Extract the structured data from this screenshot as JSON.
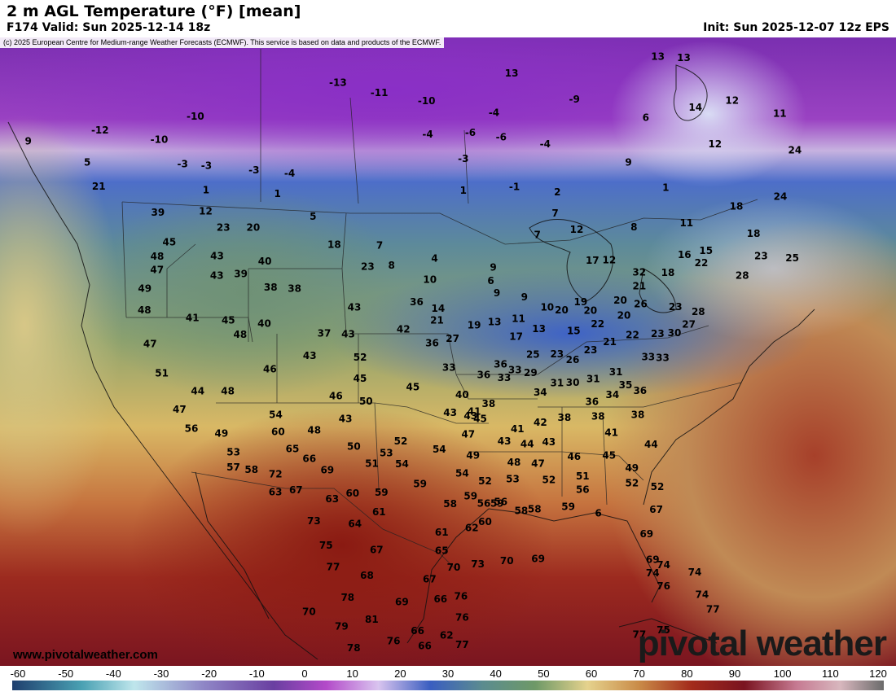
{
  "header": {
    "title": "2 m AGL Temperature (°F) [mean]",
    "valid": "F174 Valid: Sun 2025-12-14 18z",
    "init": "Init: Sun 2025-12-07 12z EPS"
  },
  "copyright": "(c) 2025 European Centre for Medium-range Weather Forecasts (ECMWF). This service is based on data and products of the ECMWF.",
  "site_url": "www.pivotalweather.com",
  "logo_text": "pivotal weather",
  "colorbar": {
    "ticks": [
      "-60",
      "-50",
      "-40",
      "-30",
      "-20",
      "-10",
      "0",
      "10",
      "20",
      "30",
      "40",
      "50",
      "60",
      "70",
      "80",
      "90",
      "100",
      "110",
      "120"
    ]
  },
  "temperature_labels": [
    {
      "t": "-12",
      "lon": -128,
      "lat": 54.2
    },
    {
      "t": "9",
      "lon": -134,
      "lat": 53
    },
    {
      "t": "5",
      "lon": -129,
      "lat": 52
    },
    {
      "t": "21",
      "lon": -128,
      "lat": 50.5
    },
    {
      "t": "-10",
      "lon": -120,
      "lat": 55.6
    },
    {
      "t": "-10",
      "lon": -123,
      "lat": 53.9
    },
    {
      "t": "-3",
      "lon": -121,
      "lat": 52.4
    },
    {
      "t": "-3",
      "lon": -119,
      "lat": 52.4
    },
    {
      "t": "-3",
      "lon": -115,
      "lat": 52.3
    },
    {
      "t": "-4",
      "lon": -112,
      "lat": 52.2
    },
    {
      "t": "1",
      "lon": -119,
      "lat": 50.8
    },
    {
      "t": "1",
      "lon": -113,
      "lat": 50.8
    },
    {
      "t": "12",
      "lon": -119,
      "lat": 49.4
    },
    {
      "t": "23",
      "lon": -117.5,
      "lat": 48.4
    },
    {
      "t": "20",
      "lon": -115,
      "lat": 48.5
    },
    {
      "t": "5",
      "lon": -110,
      "lat": 49.4
    },
    {
      "t": "39",
      "lon": -123,
      "lat": 49.1
    },
    {
      "t": "45",
      "lon": -122,
      "lat": 47.2
    },
    {
      "t": "48",
      "lon": -123,
      "lat": 46.2
    },
    {
      "t": "47",
      "lon": -123,
      "lat": 45.3
    },
    {
      "t": "43",
      "lon": -118,
      "lat": 46.5
    },
    {
      "t": "43",
      "lon": -118,
      "lat": 45.2
    },
    {
      "t": "39",
      "lon": -116,
      "lat": 45.4
    },
    {
      "t": "40",
      "lon": -114,
      "lat": 46.3
    },
    {
      "t": "38",
      "lon": -113.5,
      "lat": 44.6
    },
    {
      "t": "38",
      "lon": -111.5,
      "lat": 44.6
    },
    {
      "t": "49",
      "lon": -124,
      "lat": 44
    },
    {
      "t": "48",
      "lon": -124,
      "lat": 42.6
    },
    {
      "t": "41",
      "lon": -120,
      "lat": 42.3
    },
    {
      "t": "45",
      "lon": -117,
      "lat": 42.3
    },
    {
      "t": "40",
      "lon": -114,
      "lat": 42.2
    },
    {
      "t": "48",
      "lon": -116,
      "lat": 41.4
    },
    {
      "t": "47",
      "lon": -123.5,
      "lat": 40.4
    },
    {
      "t": "51",
      "lon": -122.5,
      "lat": 38.5
    },
    {
      "t": "44",
      "lon": -119.5,
      "lat": 37.5
    },
    {
      "t": "48",
      "lon": -117,
      "lat": 37.6
    },
    {
      "t": "46",
      "lon": -113.5,
      "lat": 39.2
    },
    {
      "t": "47",
      "lon": -121,
      "lat": 36.2
    },
    {
      "t": "56",
      "lon": -120,
      "lat": 35
    },
    {
      "t": "49",
      "lon": -117.5,
      "lat": 34.8
    },
    {
      "t": "53",
      "lon": -116.5,
      "lat": 33.6
    },
    {
      "t": "57",
      "lon": -116.5,
      "lat": 32.6
    },
    {
      "t": "58",
      "lon": -115,
      "lat": 32.5
    },
    {
      "t": "72",
      "lon": -113,
      "lat": 32.3
    },
    {
      "t": "63",
      "lon": -113,
      "lat": 31.1
    },
    {
      "t": "67",
      "lon": -111.3,
      "lat": 31.3
    },
    {
      "t": "54",
      "lon": -113,
      "lat": 36.2
    },
    {
      "t": "60",
      "lon": -112.8,
      "lat": 35.1
    },
    {
      "t": "65",
      "lon": -111.6,
      "lat": 34
    },
    {
      "t": "66",
      "lon": -110.2,
      "lat": 33.4
    },
    {
      "t": "69",
      "lon": -108.7,
      "lat": 32.7
    },
    {
      "t": "48",
      "lon": -109.8,
      "lat": 35.3
    },
    {
      "t": "43",
      "lon": -110.2,
      "lat": 40.2
    },
    {
      "t": "37",
      "lon": -109,
      "lat": 41.7
    },
    {
      "t": "43",
      "lon": -107,
      "lat": 41.7
    },
    {
      "t": "43",
      "lon": -106.5,
      "lat": 43.5
    },
    {
      "t": "52",
      "lon": -106,
      "lat": 40.2
    },
    {
      "t": "45",
      "lon": -106,
      "lat": 38.8
    },
    {
      "t": "46",
      "lon": -108,
      "lat": 37.6
    },
    {
      "t": "50",
      "lon": -105.5,
      "lat": 37.3
    },
    {
      "t": "43",
      "lon": -107.2,
      "lat": 36.1
    },
    {
      "t": "50",
      "lon": -106.5,
      "lat": 34.3
    },
    {
      "t": "51",
      "lon": -105,
      "lat": 33.2
    },
    {
      "t": "53",
      "lon": -103.8,
      "lat": 33.9
    },
    {
      "t": "52",
      "lon": -102.6,
      "lat": 34.7
    },
    {
      "t": "54",
      "lon": -102.5,
      "lat": 33.2
    },
    {
      "t": "45",
      "lon": -101.6,
      "lat": 38.3
    },
    {
      "t": "42",
      "lon": -102.4,
      "lat": 42.1
    },
    {
      "t": "36",
      "lon": -100,
      "lat": 41.2
    },
    {
      "t": "33",
      "lon": -98.6,
      "lat": 39.6
    },
    {
      "t": "43",
      "lon": -98.5,
      "lat": 36.6
    },
    {
      "t": "40",
      "lon": -97.5,
      "lat": 37.8
    },
    {
      "t": "41",
      "lon": -96.5,
      "lat": 36.7
    },
    {
      "t": "59",
      "lon": -101,
      "lat": 31.9
    },
    {
      "t": "63",
      "lon": -108.3,
      "lat": 30.8
    },
    {
      "t": "60",
      "lon": -106.6,
      "lat": 31.2
    },
    {
      "t": "59",
      "lon": -104.2,
      "lat": 31.3
    },
    {
      "t": "61",
      "lon": -104.4,
      "lat": 30
    },
    {
      "t": "64",
      "lon": -106.4,
      "lat": 29.2
    },
    {
      "t": "73",
      "lon": -109.8,
      "lat": 29.3
    },
    {
      "t": "75",
      "lon": -108.8,
      "lat": 27.7
    },
    {
      "t": "77",
      "lon": -108.2,
      "lat": 26.3
    },
    {
      "t": "67",
      "lon": -104.6,
      "lat": 27.5
    },
    {
      "t": "68",
      "lon": -105.4,
      "lat": 25.8
    },
    {
      "t": "78",
      "lon": -107,
      "lat": 24.3
    },
    {
      "t": "81",
      "lon": -105,
      "lat": 22.9
    },
    {
      "t": "69",
      "lon": -102.5,
      "lat": 24.1
    },
    {
      "t": "67",
      "lon": -100.2,
      "lat": 25.6
    },
    {
      "t": "65",
      "lon": -99.2,
      "lat": 27.5
    },
    {
      "t": "70",
      "lon": -98.2,
      "lat": 26.4
    },
    {
      "t": "66",
      "lon": -99.3,
      "lat": 24.3
    },
    {
      "t": "76",
      "lon": -97.6,
      "lat": 24.5
    },
    {
      "t": "76",
      "lon": -97.5,
      "lat": 23.1
    },
    {
      "t": "62",
      "lon": -98.8,
      "lat": 21.9
    },
    {
      "t": "77",
      "lon": -97.5,
      "lat": 21.3
    },
    {
      "t": "66",
      "lon": -101.2,
      "lat": 22.2
    },
    {
      "t": "66",
      "lon": -100.6,
      "lat": 21.2
    },
    {
      "t": "66",
      "lon": -99.6,
      "lat": 20.1
    },
    {
      "t": "76",
      "lon": -103.2,
      "lat": 21.5
    },
    {
      "t": "70",
      "lon": -110.2,
      "lat": 23.3
    },
    {
      "t": "79",
      "lon": -107.5,
      "lat": 22.4
    },
    {
      "t": "78",
      "lon": -106.5,
      "lat": 21
    },
    {
      "t": "54",
      "lon": -99.4,
      "lat": 34.2
    },
    {
      "t": "54",
      "lon": -97.5,
      "lat": 32.6
    },
    {
      "t": "47",
      "lon": -97,
      "lat": 35.2
    },
    {
      "t": "45",
      "lon": -96,
      "lat": 36.2
    },
    {
      "t": "49",
      "lon": -96.6,
      "lat": 33.8
    },
    {
      "t": "52",
      "lon": -95.6,
      "lat": 32.1
    },
    {
      "t": "58",
      "lon": -98.5,
      "lat": 30.6
    },
    {
      "t": "59",
      "lon": -96.8,
      "lat": 31.1
    },
    {
      "t": "56",
      "lon": -95.7,
      "lat": 30.6
    },
    {
      "t": "62",
      "lon": -96.7,
      "lat": 29
    },
    {
      "t": "60",
      "lon": -95.6,
      "lat": 29.4
    },
    {
      "t": "61",
      "lon": -99.2,
      "lat": 28.7
    },
    {
      "t": "73",
      "lon": -96.2,
      "lat": 26.6
    },
    {
      "t": "70",
      "lon": -93.8,
      "lat": 26.8
    },
    {
      "t": "69",
      "lon": -91.2,
      "lat": 26.9
    },
    {
      "t": "43",
      "lon": -96.8,
      "lat": 36.4
    },
    {
      "t": "43",
      "lon": -94,
      "lat": 34.7
    },
    {
      "t": "41",
      "lon": -92.9,
      "lat": 35.5
    },
    {
      "t": "38",
      "lon": -95.3,
      "lat": 37.2
    },
    {
      "t": "36",
      "lon": -95.7,
      "lat": 39.1
    },
    {
      "t": "33",
      "lon": -94,
      "lat": 38.9
    },
    {
      "t": "44",
      "lon": -92.1,
      "lat": 34.5
    },
    {
      "t": "48",
      "lon": -93.2,
      "lat": 33.3
    },
    {
      "t": "53",
      "lon": -93.3,
      "lat": 32.2
    },
    {
      "t": "59",
      "lon": -94.6,
      "lat": 30.6
    },
    {
      "t": "56",
      "lon": -94.3,
      "lat": 30.7
    },
    {
      "t": "58",
      "lon": -92.6,
      "lat": 30.1
    },
    {
      "t": "58",
      "lon": -91.5,
      "lat": 30.2
    },
    {
      "t": "59",
      "lon": -88.7,
      "lat": 30.3
    },
    {
      "t": "6",
      "lon": -86.2,
      "lat": 29.8
    },
    {
      "t": "42",
      "lon": -91,
      "lat": 35.9
    },
    {
      "t": "47",
      "lon": -91.2,
      "lat": 33.2
    },
    {
      "t": "43",
      "lon": -90.3,
      "lat": 34.6
    },
    {
      "t": "52",
      "lon": -90.3,
      "lat": 32.1
    },
    {
      "t": "46",
      "lon": -88.2,
      "lat": 33.6
    },
    {
      "t": "51",
      "lon": -87.5,
      "lat": 32.3
    },
    {
      "t": "56",
      "lon": -87.5,
      "lat": 31.4
    },
    {
      "t": "45",
      "lon": -85.3,
      "lat": 33.6
    },
    {
      "t": "49",
      "lon": -83.4,
      "lat": 32.7
    },
    {
      "t": "52",
      "lon": -83.4,
      "lat": 31.7
    },
    {
      "t": "44",
      "lon": -81.8,
      "lat": 34.2
    },
    {
      "t": "41",
      "lon": -85.1,
      "lat": 35.1
    },
    {
      "t": "38",
      "lon": -82.9,
      "lat": 36.2
    },
    {
      "t": "38",
      "lon": -86.2,
      "lat": 36.2
    },
    {
      "t": "38",
      "lon": -89,
      "lat": 36.2
    },
    {
      "t": "36",
      "lon": -86.7,
      "lat": 37.2
    },
    {
      "t": "34",
      "lon": -85,
      "lat": 37.6
    },
    {
      "t": "35",
      "lon": -83.9,
      "lat": 38.2
    },
    {
      "t": "36",
      "lon": -82.7,
      "lat": 37.8
    },
    {
      "t": "34",
      "lon": -91,
      "lat": 37.9
    },
    {
      "t": "31",
      "lon": -89.6,
      "lat": 38.5
    },
    {
      "t": "30",
      "lon": -88.3,
      "lat": 38.5
    },
    {
      "t": "31",
      "lon": -86.6,
      "lat": 38.7
    },
    {
      "t": "31",
      "lon": -84.7,
      "lat": 39.1
    },
    {
      "t": "29",
      "lon": -91.8,
      "lat": 39.2
    },
    {
      "t": "33",
      "lon": -93.1,
      "lat": 39.4
    },
    {
      "t": "36",
      "lon": -94.3,
      "lat": 39.8
    },
    {
      "t": "25",
      "lon": -91.6,
      "lat": 40.4
    },
    {
      "t": "23",
      "lon": -89.6,
      "lat": 40.4
    },
    {
      "t": "26",
      "lon": -88.3,
      "lat": 40
    },
    {
      "t": "23",
      "lon": -86.8,
      "lat": 40.6
    },
    {
      "t": "21",
      "lon": -85.2,
      "lat": 41.1
    },
    {
      "t": "22",
      "lon": -83.3,
      "lat": 41.5
    },
    {
      "t": "33",
      "lon": -82,
      "lat": 40
    },
    {
      "t": "33",
      "lon": -80.8,
      "lat": 39.9
    },
    {
      "t": "23",
      "lon": -81.2,
      "lat": 41.5
    },
    {
      "t": "30",
      "lon": -79.8,
      "lat": 41.5
    },
    {
      "t": "27",
      "lon": -78.6,
      "lat": 42
    },
    {
      "t": "28",
      "lon": -77.8,
      "lat": 42.8
    },
    {
      "t": "23",
      "lon": -79.7,
      "lat": 43.2
    },
    {
      "t": "26",
      "lon": -82.6,
      "lat": 43.5
    },
    {
      "t": "20",
      "lon": -84.3,
      "lat": 43.8
    },
    {
      "t": "22",
      "lon": -86.2,
      "lat": 42.3
    },
    {
      "t": "20",
      "lon": -84,
      "lat": 42.8
    },
    {
      "t": "20",
      "lon": -86.8,
      "lat": 43.2
    },
    {
      "t": "15",
      "lon": -88.2,
      "lat": 41.9
    },
    {
      "t": "19",
      "lon": -87.6,
      "lat": 43.8
    },
    {
      "t": "20",
      "lon": -89.2,
      "lat": 43.3
    },
    {
      "t": "13",
      "lon": -91.1,
      "lat": 42.1
    },
    {
      "t": "10",
      "lon": -90.4,
      "lat": 43.5
    },
    {
      "t": "11",
      "lon": -92.8,
      "lat": 42.8
    },
    {
      "t": "17",
      "lon": -93,
      "lat": 41.6
    },
    {
      "t": "13",
      "lon": -94.8,
      "lat": 42.6
    },
    {
      "t": "19",
      "lon": -96.5,
      "lat": 42.4
    },
    {
      "t": "27",
      "lon": -98.3,
      "lat": 41.5
    },
    {
      "t": "21",
      "lon": -99.6,
      "lat": 42.7
    },
    {
      "t": "14",
      "lon": -99.5,
      "lat": 43.5
    },
    {
      "t": "9",
      "lon": -94.6,
      "lat": 44.5
    },
    {
      "t": "9",
      "lon": -92.3,
      "lat": 44.2
    },
    {
      "t": "6",
      "lon": -95.1,
      "lat": 45.3
    },
    {
      "t": "9",
      "lon": -94.9,
      "lat": 46.2
    },
    {
      "t": "10",
      "lon": -100.2,
      "lat": 45.4
    },
    {
      "t": "8",
      "lon": -103.4,
      "lat": 46.3
    },
    {
      "t": "4",
      "lon": -99.8,
      "lat": 46.8
    },
    {
      "t": "7",
      "lon": -104.4,
      "lat": 47.6
    },
    {
      "t": "23",
      "lon": -105.4,
      "lat": 46.2
    },
    {
      "t": "18",
      "lon": -108.2,
      "lat": 47.6
    },
    {
      "t": "36",
      "lon": -101.3,
      "lat": 43.9
    },
    {
      "t": "7",
      "lon": -91.2,
      "lat": 48.3
    },
    {
      "t": "12",
      "lon": -87.9,
      "lat": 48.6
    },
    {
      "t": "17",
      "lon": -86.6,
      "lat": 46.5
    },
    {
      "t": "12",
      "lon": -85.2,
      "lat": 46.5
    },
    {
      "t": "8",
      "lon": -83.1,
      "lat": 48.6
    },
    {
      "t": "11",
      "lon": -78.7,
      "lat": 48.7
    },
    {
      "t": "32",
      "lon": -82.7,
      "lat": 45.6
    },
    {
      "t": "21",
      "lon": -82.7,
      "lat": 44.7
    },
    {
      "t": "18",
      "lon": -80.3,
      "lat": 45.5
    },
    {
      "t": "16",
      "lon": -78.9,
      "lat": 46.6
    },
    {
      "t": "15",
      "lon": -77.1,
      "lat": 46.8
    },
    {
      "t": "22",
      "lon": -77.5,
      "lat": 46
    },
    {
      "t": "18",
      "lon": -74.5,
      "lat": 49.6
    },
    {
      "t": "24",
      "lon": -70.8,
      "lat": 50
    },
    {
      "t": "18",
      "lon": -73.1,
      "lat": 47.7
    },
    {
      "t": "23",
      "lon": -72.5,
      "lat": 46.2
    },
    {
      "t": "25",
      "lon": -69.9,
      "lat": 45.9
    },
    {
      "t": "28",
      "lon": -74.1,
      "lat": 45
    },
    {
      "t": "24",
      "lon": -69.5,
      "lat": 53
    },
    {
      "t": "12",
      "lon": -76.2,
      "lat": 53.8
    },
    {
      "t": "1",
      "lon": -80.4,
      "lat": 51.1
    },
    {
      "t": "7",
      "lon": -89.7,
      "lat": 49.7
    },
    {
      "t": "2",
      "lon": -89.5,
      "lat": 51.1
    },
    {
      "t": "-1",
      "lon": -93.1,
      "lat": 51.5
    },
    {
      "t": "1",
      "lon": -97.4,
      "lat": 51.3
    },
    {
      "t": "-4",
      "lon": -90.5,
      "lat": 54.3
    },
    {
      "t": "-6",
      "lon": -94.2,
      "lat": 54.8
    },
    {
      "t": "-6",
      "lon": -96.8,
      "lat": 55.1
    },
    {
      "t": "-4",
      "lon": -100.4,
      "lat": 55
    },
    {
      "t": "-10",
      "lon": -100.5,
      "lat": 57.2
    },
    {
      "t": "13",
      "lon": -93.3,
      "lat": 59
    },
    {
      "t": "-13",
      "lon": -108,
      "lat": 58.3
    },
    {
      "t": "-11",
      "lon": -104.5,
      "lat": 57.7
    },
    {
      "t": "-9",
      "lon": -88,
      "lat": 57.2
    },
    {
      "t": "6",
      "lon": -82,
      "lat": 55.8
    },
    {
      "t": "9",
      "lon": -83.5,
      "lat": 52.9
    },
    {
      "t": "14",
      "lon": -77.8,
      "lat": 56.3
    },
    {
      "t": "12",
      "lon": -74.7,
      "lat": 56.6
    },
    {
      "t": "11",
      "lon": -70.7,
      "lat": 55.5
    },
    {
      "t": "13",
      "lon": -78.7,
      "lat": 59.6
    },
    {
      "t": "13",
      "lon": -80.9,
      "lat": 59.8
    },
    {
      "t": "-3",
      "lon": -97.4,
      "lat": 53.4
    },
    {
      "t": "-4",
      "lon": -94.8,
      "lat": 56.4
    },
    {
      "t": "69",
      "lon": -82.2,
      "lat": 28.3
    },
    {
      "t": "69",
      "lon": -81.7,
      "lat": 26.6
    },
    {
      "t": "74",
      "lon": -80.8,
      "lat": 26.2
    },
    {
      "t": "74",
      "lon": -81.7,
      "lat": 25.7
    },
    {
      "t": "76",
      "lon": -80.8,
      "lat": 24.8
    },
    {
      "t": "74",
      "lon": -78.2,
      "lat": 25.6
    },
    {
      "t": "74",
      "lon": -77.6,
      "lat": 24.1
    },
    {
      "t": "77",
      "lon": -76.7,
      "lat": 23.1
    },
    {
      "t": "77",
      "lon": -82.8,
      "lat": 21.7
    },
    {
      "t": "75",
      "lon": -80.8,
      "lat": 21.9
    },
    {
      "t": "52",
      "lon": -81.3,
      "lat": 31.4
    },
    {
      "t": "67",
      "lon": -81.4,
      "lat": 29.9
    }
  ]
}
